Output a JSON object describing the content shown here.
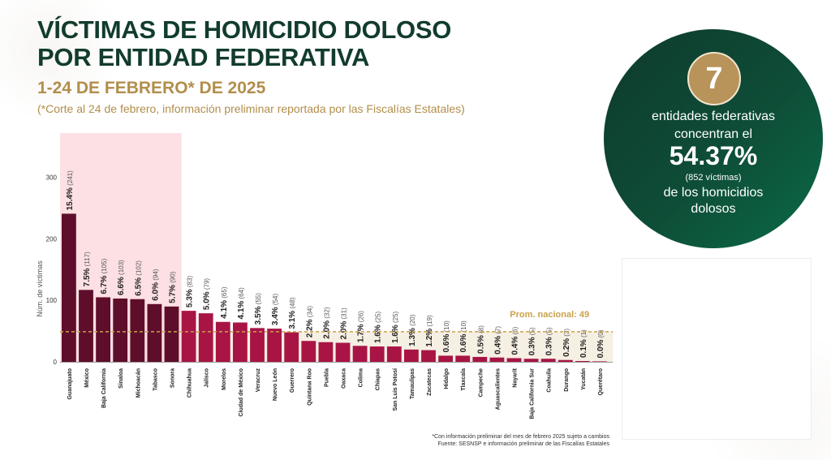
{
  "header": {
    "title_line1": "VÍCTIMAS DE HOMICIDIO DOLOSO",
    "title_line2": "POR ENTIDAD FEDERATIVA",
    "subtitle": "1-24 DE FEBRERO* DE 2025",
    "note": "(*Corte al 24 de febrero, información preliminar reportada por las Fiscalías Estatales)"
  },
  "summary": {
    "count": "7",
    "line1": "entidades federativas",
    "line2": "concentran el",
    "percent": "54.37%",
    "victims": "(852  víctimas)",
    "line3": "de los homicidios",
    "line4": "dolosos"
  },
  "footer": {
    "source_line1": "*Con información preliminar del mes de febrero 2025 sujeto a cambios",
    "source_line2": "Fuente: SESNSP e información preliminar de las Fiscalías Estatales"
  },
  "colors": {
    "dark_bar": "#5e0e2b",
    "light_bar": "#a81545",
    "highlight": "#fbd6da",
    "average_line": "#c9a24a",
    "title": "#123c2d",
    "gold": "#b28e4b"
  },
  "chart_data": {
    "type": "bar",
    "ylabel": "Núm. de víctimas",
    "ylim": [
      0,
      330
    ],
    "yticks": [
      0,
      100,
      200,
      300
    ],
    "highlight_count": 7,
    "average": {
      "label": "Prom. nacional: 49",
      "value": 49
    },
    "categories": [
      "Guanajuato",
      "México",
      "Baja California",
      "Sinaloa",
      "Michoacán",
      "Tabasco",
      "Sonora",
      "Chihuahua",
      "Jalisco",
      "Morelos",
      "Ciudad de México",
      "Veracruz",
      "Nuevo León",
      "Guerrero",
      "Quintana Roo",
      "Puebla",
      "Oaxaca",
      "Colima",
      "Chiapas",
      "San Luis Potosí",
      "Tamaulipas",
      "Zacatecas",
      "Hidalgo",
      "Tlaxcala",
      "Campeche",
      "Aguascalientes",
      "Nayarit",
      "Baja California Sur",
      "Coahuila",
      "Durango",
      "Yucatán",
      "Querétaro"
    ],
    "values": [
      241,
      117,
      105,
      103,
      102,
      94,
      90,
      83,
      79,
      65,
      64,
      55,
      54,
      48,
      34,
      32,
      31,
      26,
      25,
      25,
      20,
      19,
      10,
      10,
      8,
      7,
      6,
      5,
      5,
      3,
      1,
      0
    ],
    "percents": [
      "15.4%",
      "7.5%",
      "6.7%",
      "6.6%",
      "6.5%",
      "6.0%",
      "5.7%",
      "5.3%",
      "5.0%",
      "4.1%",
      "4.1%",
      "3.5%",
      "3.4%",
      "3.1%",
      "2.2%",
      "2.0%",
      "2.0%",
      "1.7%",
      "1.6%",
      "1.6%",
      "1.3%",
      "1.2%",
      "0.6%",
      "0.6%",
      "0.5%",
      "0.4%",
      "0.4%",
      "0.3%",
      "0.3%",
      "0.2%",
      "0.1%",
      "0.0%"
    ]
  }
}
